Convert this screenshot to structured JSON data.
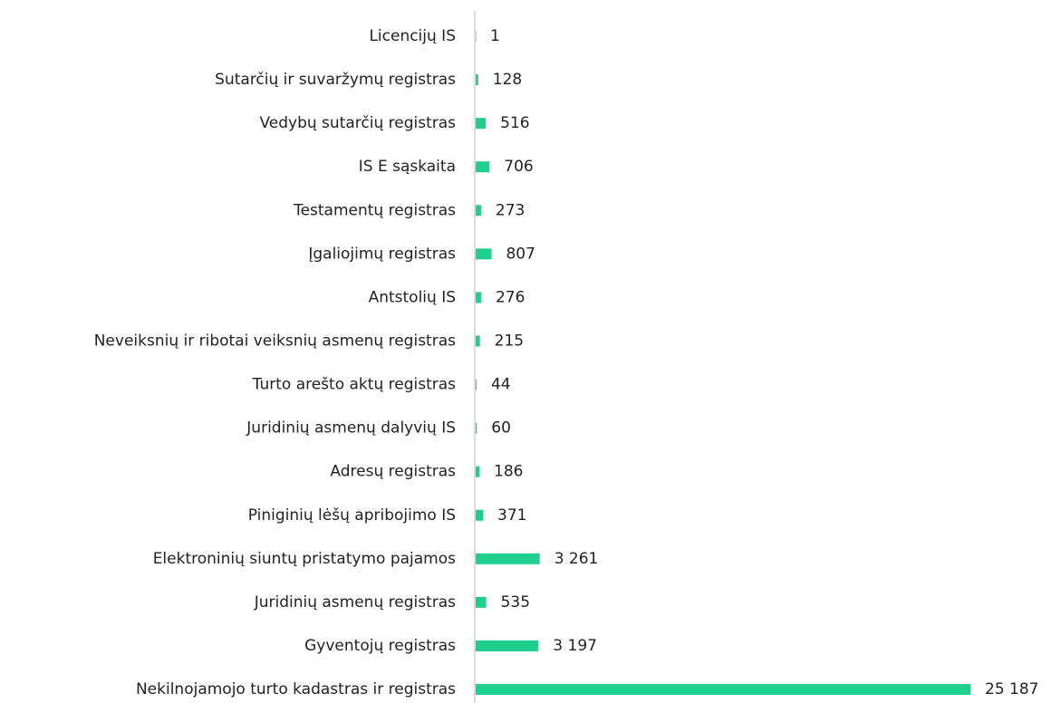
{
  "chart_data": {
    "type": "bar",
    "orientation": "horizontal",
    "color": "#1ecf8e",
    "categories": [
      "Licencijų IS",
      "Sutarčių ir suvaržymų registras",
      "Vedybų sutarčių registras",
      "IS E sąskaita",
      "Testamentų registras",
      "Įgaliojimų registras",
      "Antstolių IS",
      "Neveiksnių ir ribotai veiksnių asmenų registras",
      "Turto arešto aktų registras",
      "Juridinių asmenų dalyvių IS",
      "Adresų registras",
      "Piniginių lėšų apribojimo IS",
      "Elektroninių siuntų pristatymo pajamos",
      "Juridinių asmenų registras",
      "Gyventojų registras",
      "Nekilnojamojo turto kadastras ir registras"
    ],
    "values": [
      1,
      128,
      516,
      706,
      273,
      807,
      276,
      215,
      44,
      60,
      186,
      371,
      3261,
      535,
      3197,
      25187
    ],
    "value_labels": [
      "1",
      "128",
      "516",
      "706",
      "273",
      "807",
      "276",
      "215",
      "44",
      "60",
      "186",
      "371",
      "3 261",
      "535",
      "3 197",
      "25 187"
    ]
  }
}
